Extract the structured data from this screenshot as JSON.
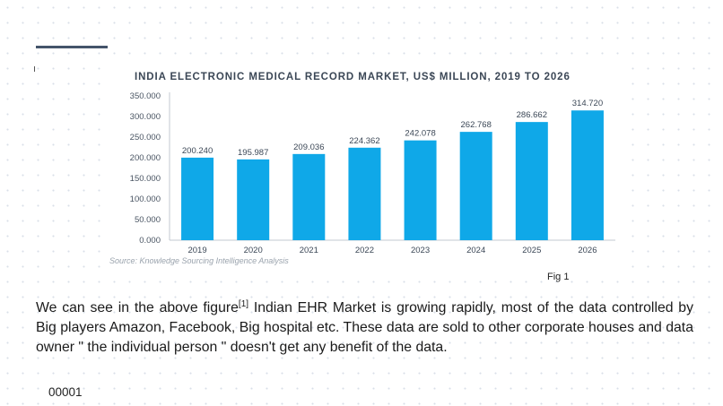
{
  "chart_data": {
    "type": "bar",
    "title": "INDIA ELECTRONIC MEDICAL RECORD MARKET, US$ MILLION, 2019 TO 2026",
    "categories": [
      "2019",
      "2020",
      "2021",
      "2022",
      "2023",
      "2024",
      "2025",
      "2026"
    ],
    "values": [
      200.24,
      195.987,
      209.036,
      224.362,
      242.078,
      262.768,
      286.662,
      314.72
    ],
    "value_labels": [
      "200.240",
      "195.987",
      "209.036",
      "224.362",
      "242.078",
      "262.768",
      "286.662",
      "314.720"
    ],
    "y_ticks": [
      0,
      50,
      100,
      150,
      200,
      250,
      300,
      350
    ],
    "y_tick_labels": [
      "0.000",
      "50.000",
      "100.000",
      "150.000",
      "200.000",
      "250.000",
      "300.000",
      "350.000"
    ],
    "ylim": [
      0,
      350
    ],
    "xlabel": "",
    "ylabel": "",
    "grid": false,
    "bar_color": "#0fa8e8",
    "source": "Source: Knowledge Sourcing Intelligence Analysis"
  },
  "caption": "Fig 1",
  "body": {
    "before_ref": "We can see in the above figure",
    "ref": "[1]",
    "after_ref": " Indian EHR Market is growing rapidly, most of the data controlled by Big players Amazon, Facebook, Big hospital etc. These data are sold to other corporate houses and data owner \" the individual person \" doesn't get any benefit of the data."
  },
  "footer_code": "00001"
}
